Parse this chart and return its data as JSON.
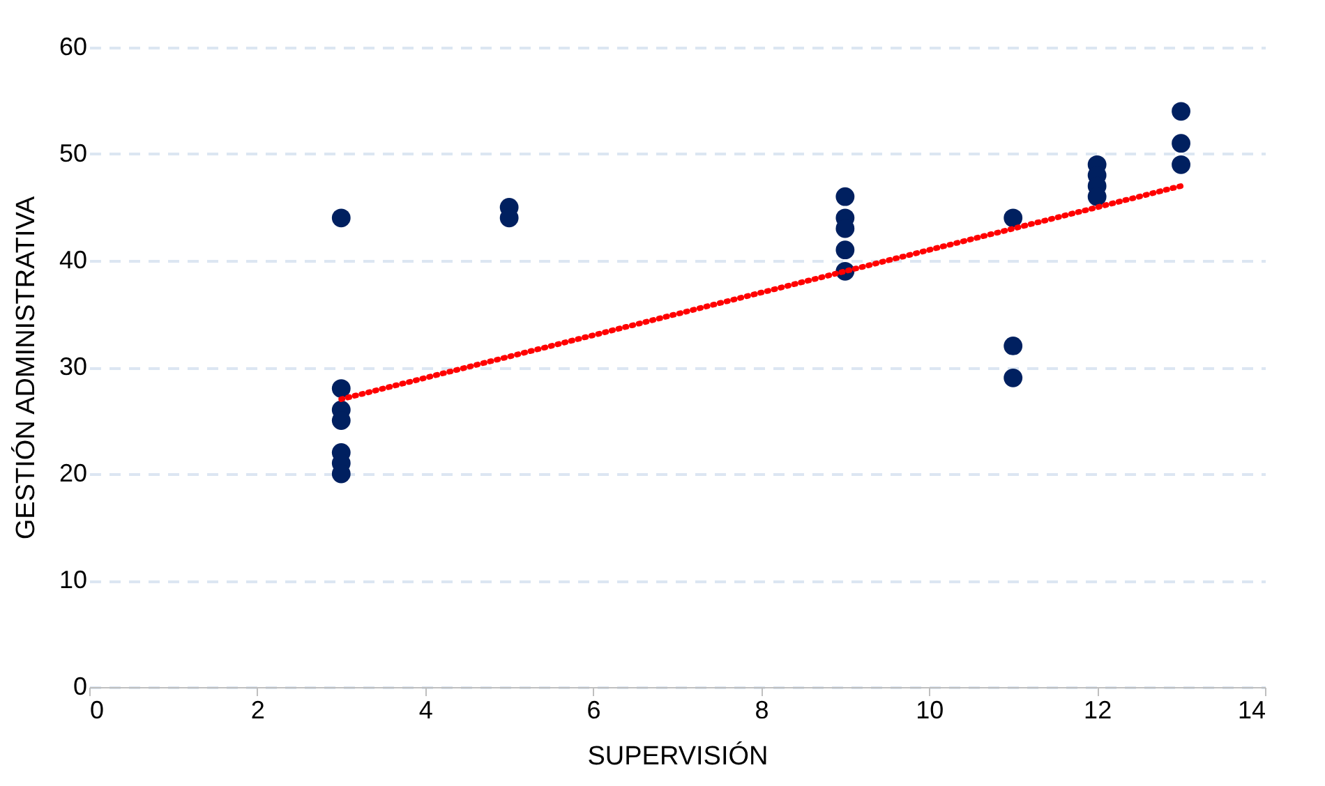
{
  "chart_data": {
    "type": "scatter",
    "xlabel": "SUPERVISIÓN",
    "ylabel": "GESTIÓN ADMINISTRATIVA",
    "xlim": [
      0,
      14
    ],
    "xticks": [
      0,
      2,
      4,
      6,
      8,
      10,
      12,
      14
    ],
    "ylim": [
      0,
      60
    ],
    "yticks": [
      0,
      10,
      20,
      30,
      40,
      50,
      60
    ],
    "grid": "y",
    "series": [
      {
        "color": "#002060",
        "marker": "circle",
        "x": [
          3,
          3,
          3,
          3,
          3,
          3,
          3,
          5,
          5,
          9,
          9,
          9,
          9,
          9,
          11,
          11,
          11,
          12,
          12,
          12,
          12,
          13,
          13,
          13
        ],
        "values": [
          44,
          28,
          26,
          25,
          22,
          21,
          20,
          45,
          44,
          46,
          44,
          43,
          41,
          39,
          44,
          32,
          29,
          49,
          48,
          47,
          46,
          54,
          51,
          49
        ]
      },
      {
        "type": "line",
        "color": "#ff0000",
        "line_style": "dotted",
        "x": [
          3,
          13
        ],
        "values": [
          27,
          47
        ]
      }
    ]
  }
}
